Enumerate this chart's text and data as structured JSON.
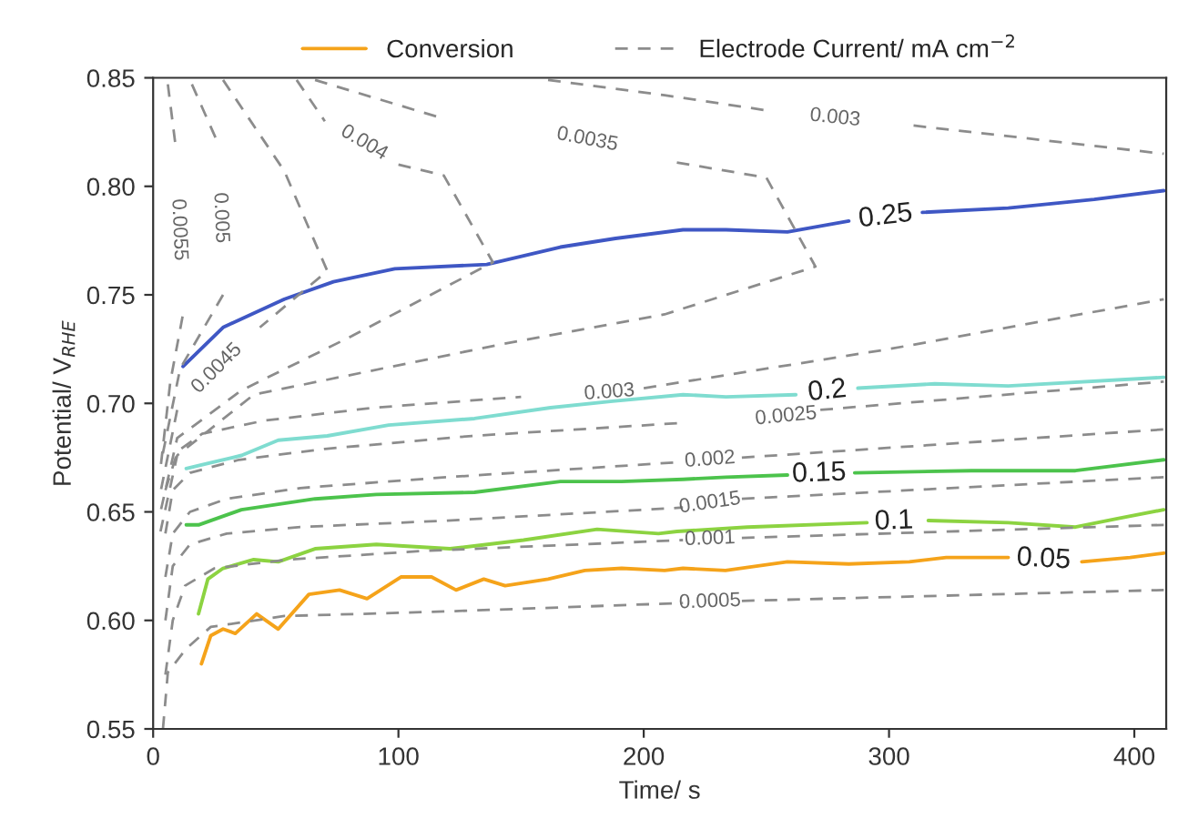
{
  "chart_data": {
    "type": "line",
    "xlabel": "Time/ s",
    "ylabel": "Potential/ V$_{RHE}$",
    "xlim": [
      0,
      413
    ],
    "ylim": [
      0.55,
      0.85
    ],
    "xticks": [
      0,
      100,
      200,
      300,
      400
    ],
    "yticks": [
      {
        "value": 0.55,
        "label": "0.55"
      },
      {
        "value": 0.6,
        "label": "0.60"
      },
      {
        "value": 0.65,
        "label": "0.65"
      },
      {
        "value": 0.7,
        "label": "0.70"
      },
      {
        "value": 0.75,
        "label": "0.75"
      },
      {
        "value": 0.8,
        "label": "0.80"
      },
      {
        "value": 0.85,
        "label": "0.85"
      }
    ],
    "legend": "top",
    "series": [
      {
        "name": "Conversion",
        "color": "#f5a31a",
        "line_style": "solid",
        "x": [
          19.7,
          23.5,
          28.5,
          33.5,
          42.2,
          51,
          63.5,
          76,
          87.2,
          101,
          113.5,
          123.5,
          134.8,
          143.5,
          161,
          176,
          191,
          208.5,
          216,
          233.3,
          258.6,
          283.6,
          308.3,
          323.3,
          348.6,
          363,
          378.6,
          398.3,
          412
        ],
        "values": [
          0.58,
          0.593,
          0.596,
          0.594,
          0.603,
          0.596,
          0.612,
          0.614,
          0.61,
          0.62,
          0.62,
          0.614,
          0.619,
          0.616,
          0.619,
          0.623,
          0.624,
          0.623,
          0.624,
          0.623,
          0.627,
          0.626,
          0.627,
          0.629,
          0.629,
          null,
          0.627,
          0.629,
          0.631
        ]
      },
      {
        "color": "#8cd341",
        "line_style": "solid",
        "x": [
          18.5,
          22.3,
          28.5,
          41,
          51,
          66,
          91,
          121,
          151,
          181,
          206,
          213.6,
          242.3,
          291,
          302,
          316,
          348.6,
          376,
          393.6,
          412
        ],
        "values": [
          0.603,
          0.619,
          0.624,
          0.628,
          0.627,
          0.633,
          0.635,
          0.633,
          0.637,
          0.642,
          0.64,
          0.641,
          0.643,
          0.645,
          null,
          0.646,
          0.645,
          0.643,
          0.647,
          0.651
        ]
      },
      {
        "color": "#4cc34c",
        "line_style": "solid",
        "x": [
          13.5,
          18.5,
          36,
          66,
          91,
          131,
          166,
          191,
          216,
          233.5,
          258.6,
          271.5,
          286,
          333.6,
          376,
          412
        ],
        "values": [
          0.644,
          0.644,
          0.651,
          0.656,
          0.658,
          0.659,
          0.664,
          0.664,
          0.665,
          0.666,
          0.667,
          null,
          0.668,
          0.669,
          0.669,
          0.674
        ]
      },
      {
        "color": "#7fdcd0",
        "line_style": "solid",
        "x": [
          13.5,
          36,
          51,
          71,
          96,
          131,
          162,
          187.3,
          216,
          233.5,
          262,
          274.8,
          287.3,
          318.6,
          348.6,
          412
        ],
        "values": [
          0.67,
          0.676,
          0.683,
          0.685,
          0.69,
          0.693,
          0.698,
          0.701,
          0.704,
          0.703,
          0.704,
          null,
          0.707,
          0.709,
          0.708,
          0.712
        ]
      },
      {
        "color": "#3f57c4",
        "line_style": "solid",
        "x": [
          12.2,
          28.5,
          53.5,
          73.5,
          98.5,
          136,
          166,
          188.5,
          216,
          233.5,
          258.6,
          283.6,
          298.6,
          313.6,
          348.6,
          383.6,
          412
        ],
        "values": [
          0.717,
          0.735,
          0.748,
          0.756,
          0.762,
          0.764,
          0.772,
          0.776,
          0.78,
          0.78,
          0.779,
          0.784,
          null,
          0.788,
          0.79,
          0.794,
          0.798
        ]
      },
      {
        "name": "Electrode Current/ mA cm$^{−2}$",
        "color": "#8c8c8c",
        "line_style": "dashed",
        "x": [
          4,
          6,
          13.5,
          23.5,
          53.5,
          116,
          216,
          227,
          240,
          412
        ],
        "values": [
          0.55,
          0.576,
          0.587,
          0.597,
          0.602,
          0.604,
          0.608,
          null,
          0.609,
          0.614
        ]
      },
      {
        "color": "#8c8c8c",
        "line_style": "dashed",
        "x": [
          5,
          8,
          13,
          25,
          55,
          110,
          216,
          227,
          240,
          412
        ],
        "values": [
          0.575,
          0.6,
          0.616,
          0.624,
          0.628,
          0.632,
          0.637,
          null,
          0.638,
          0.644
        ]
      },
      {
        "color": "#8c8c8c",
        "line_style": "dashed",
        "x": [
          5,
          8,
          15,
          30,
          60,
          120,
          216,
          227,
          240,
          412
        ],
        "values": [
          0.6,
          0.625,
          0.635,
          0.64,
          0.643,
          0.646,
          0.652,
          null,
          0.656,
          0.666
        ]
      },
      {
        "color": "#8c8c8c",
        "line_style": "dashed",
        "x": [
          5,
          8,
          15,
          30,
          60,
          120,
          216,
          227,
          240,
          412
        ],
        "values": [
          0.62,
          0.64,
          0.65,
          0.656,
          0.661,
          0.666,
          0.673,
          null,
          0.675,
          0.688
        ]
      },
      {
        "color": "#8c8c8c",
        "line_style": "dashed",
        "x": [
          5,
          8,
          15,
          35,
          70,
          130,
          216,
          258,
          272,
          412
        ],
        "values": [
          0.64,
          0.66,
          0.668,
          0.674,
          0.679,
          0.685,
          0.691,
          null,
          0.697,
          0.71
        ]
      },
      {
        "color": "#8c8c8c",
        "line_style": "dashed",
        "x": [
          5,
          10,
          20,
          45,
          90,
          150,
          186,
          200,
          300,
          412
        ],
        "values": [
          0.66,
          0.678,
          0.686,
          0.692,
          0.698,
          0.703,
          null,
          0.707,
          0.725,
          0.748
        ]
      },
      {
        "color": "#8c8c8c",
        "line_style": "dashed",
        "x": [
          161,
          208.5,
          250,
          278,
          310,
          412
        ],
        "values": [
          0.849,
          0.842,
          0.835,
          null,
          0.828,
          0.815
        ]
      },
      {
        "color": "#8c8c8c",
        "line_style": "dashed",
        "x": [
          66,
          116,
          177,
          213.5,
          250,
          270,
          208.5,
          141,
          41,
          9.8,
          3
        ],
        "values": [
          0.849,
          0.832,
          null,
          0.811,
          0.804,
          0.763,
          0.741,
          0.727,
          0.704,
          0.676,
          0.641
        ]
      },
      {
        "color": "#8c8c8c",
        "line_style": "dashed",
        "x": [
          58.5,
          70,
          86,
          100,
          118.5,
          138.5,
          81,
          36,
          9.8,
          3
        ],
        "values": [
          0.849,
          0.83,
          null,
          0.81,
          0.805,
          0.765,
          0.731,
          0.706,
          0.684,
          0.65
        ]
      },
      {
        "color": "#8c8c8c",
        "line_style": "dashed",
        "x": [
          28.5,
          53.5,
          71,
          43.5,
          26,
          9.8,
          3
        ],
        "values": [
          0.849,
          0.807,
          0.761,
          0.735,
          null,
          0.697,
          0.659
        ]
      },
      {
        "color": "#8c8c8c",
        "line_style": "dashed",
        "x": [
          15.8,
          26,
          27.5,
          28.5,
          11,
          3.8
        ],
        "values": [
          0.847,
          0.821,
          null,
          0.75,
          0.716,
          0.676
        ]
      },
      {
        "color": "#8c8c8c",
        "line_style": "dashed",
        "x": [
          6,
          9,
          10.5,
          12,
          7,
          3
        ],
        "values": [
          0.847,
          0.82,
          null,
          0.74,
          0.71,
          0.67
        ]
      }
    ],
    "annotations": [
      "0.05",
      "0.1",
      "0.15",
      "0.2",
      "0.25",
      "0.0005",
      "0.001",
      "0.0015",
      "0.002",
      "0.0025",
      "0.003",
      "0.003",
      "0.0035",
      "0.004",
      "0.0045",
      "0.005",
      "0.0055"
    ]
  }
}
